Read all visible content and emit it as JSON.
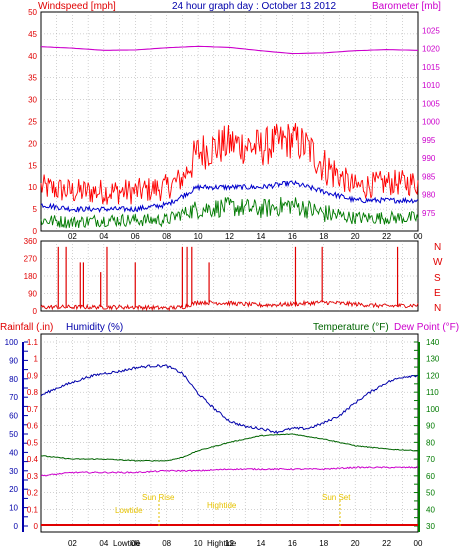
{
  "header": {
    "wind_label": "Windspeed [mph]",
    "title": "24 hour graph day : October 13 2012",
    "baro_label": "Barometer [mb]"
  },
  "mid_header": {
    "rain_label": "Rainfall (.in)",
    "humidity_label": "Humidity (%)",
    "temp_label": "Temperature (°F)",
    "dew_label": "Dew Point (°F)"
  },
  "colors": {
    "wind_gust": "#ff0000",
    "wind_avg": "#0000cc",
    "wind_low": "#007a00",
    "barometer": "#cc00cc",
    "direction": "#e00000",
    "humidity": "#0000aa",
    "temperature": "#006400",
    "dewpoint": "#cc00cc",
    "tide": "#e6c200",
    "frame": "#000000",
    "grid": "#8f8f8f"
  },
  "chart_data": [
    {
      "type": "line",
      "x_ticks": [
        "02",
        "04",
        "06",
        "08",
        "10",
        "12",
        "14",
        "16",
        "18",
        "20",
        "22",
        "00"
      ],
      "ylabel_left": "Windspeed [mph]",
      "ylabel_right": "Barometer [mb]",
      "ylim_left": [
        0,
        50
      ],
      "yticks_left": [
        "0",
        "5",
        "10",
        "15",
        "20",
        "25",
        "30",
        "35",
        "40",
        "45",
        "50"
      ],
      "ylim_right": [
        970,
        1030
      ],
      "yticks_right": [
        "975",
        "980",
        "985",
        "990",
        "995",
        "1000",
        "1005",
        "1010",
        "1015",
        "1020",
        "1025"
      ],
      "grid": true,
      "series": [
        {
          "name": "gust",
          "x": [
            0,
            2,
            4,
            6,
            8,
            9,
            10,
            12,
            14,
            16,
            17,
            18,
            20,
            22,
            24
          ],
          "y": [
            10,
            9,
            9,
            9,
            10,
            12,
            18,
            20,
            19,
            21,
            19,
            15,
            10,
            11,
            11
          ]
        },
        {
          "name": "avg",
          "x": [
            0,
            2,
            4,
            6,
            8,
            9,
            10,
            12,
            14,
            16,
            17,
            18,
            20,
            22,
            24
          ],
          "y": [
            6,
            5,
            5,
            5,
            6,
            8,
            10,
            10,
            10,
            11,
            10,
            9,
            7,
            7,
            7
          ]
        },
        {
          "name": "low",
          "x": [
            0,
            2,
            4,
            6,
            8,
            9,
            10,
            12,
            14,
            16,
            17,
            18,
            20,
            22,
            24
          ],
          "y": [
            2.5,
            2,
            2.5,
            2.5,
            2.5,
            4,
            5,
            5.5,
            5,
            6,
            5,
            4,
            3,
            3,
            3
          ]
        },
        {
          "name": "barometer",
          "x": [
            0,
            2,
            4,
            6,
            8,
            10,
            12,
            14,
            16,
            18,
            20,
            22,
            24
          ],
          "y": [
            1020.5,
            1020.1,
            1019.5,
            1019.6,
            1020.2,
            1020.6,
            1020.3,
            1019.4,
            1018.6,
            1018.8,
            1019.4,
            1019.7,
            1019.5
          ]
        }
      ]
    },
    {
      "type": "scatter",
      "x_ticks": [],
      "yticks_left": [
        "0",
        "90",
        "180",
        "270",
        "360"
      ],
      "ylim": [
        0,
        360
      ],
      "compass_labels": [
        "N",
        "W",
        "S",
        "E",
        "N"
      ],
      "grid": true,
      "series": [
        {
          "name": "direction_baseline",
          "x": [
            0,
            3,
            6,
            8,
            9,
            10,
            12,
            14,
            16,
            18,
            20,
            22,
            24
          ],
          "y": [
            20,
            20,
            20,
            15,
            20,
            45,
            40,
            30,
            35,
            45,
            35,
            25,
            30
          ]
        },
        {
          "name": "direction_spikes",
          "x": [
            1.1,
            1.6,
            2.5,
            2.7,
            3.8,
            4.2,
            6.0,
            9.0,
            9.3,
            9.6,
            10.7,
            16.2,
            17.9,
            22.7
          ],
          "y": [
            330,
            330,
            250,
            250,
            200,
            330,
            250,
            330,
            330,
            330,
            250,
            330,
            330,
            330
          ]
        }
      ]
    },
    {
      "type": "line",
      "x_ticks": [
        "02",
        "04",
        "06",
        "08",
        "10",
        "12",
        "14",
        "16",
        "18",
        "20",
        "22",
        "00"
      ],
      "ylabel_left_1": "Rainfall (.in)",
      "ylabel_left_2": "Humidity (%)",
      "ylabel_right": "Temperature (°F)",
      "rain_ticks": [
        "0",
        "0.1",
        "0.2",
        "0.3",
        "0.4",
        "0.5",
        "0.6",
        "0.7",
        "0.8",
        "0.9",
        "1",
        "1.1"
      ],
      "humidity_ticks": [
        "0",
        "10",
        "20",
        "30",
        "40",
        "50",
        "60",
        "70",
        "80",
        "90",
        "100"
      ],
      "temp_ticks": [
        "30",
        "40",
        "50",
        "60",
        "70",
        "80",
        "90",
        "100",
        "110",
        "120",
        "130",
        "140"
      ],
      "ylim_humidity": [
        0,
        100
      ],
      "ylim_temp": [
        30,
        140
      ],
      "grid": true,
      "tide_labels": [
        "Lowtide",
        "Sun Rise",
        "Hightide",
        "Sun Set",
        "Lowtide",
        "Hightide"
      ],
      "series": [
        {
          "name": "humidity",
          "x": [
            0,
            1,
            2,
            3,
            4,
            5,
            6,
            7,
            8,
            9,
            10,
            11,
            12,
            13,
            14,
            15,
            16,
            17,
            18,
            19,
            20,
            21,
            22,
            23,
            24
          ],
          "y": [
            71,
            75,
            78,
            81,
            83,
            84,
            86,
            87,
            87,
            83,
            72,
            64,
            57,
            54,
            53,
            51,
            53,
            53,
            56,
            60,
            67,
            73,
            78,
            81,
            82
          ]
        },
        {
          "name": "temperature",
          "x": [
            0,
            2,
            4,
            6,
            8,
            9,
            10,
            12,
            14,
            16,
            18,
            20,
            22,
            24
          ],
          "y": [
            72,
            70,
            70,
            69,
            69,
            71,
            75,
            80,
            84,
            85,
            82,
            78,
            76,
            75
          ]
        },
        {
          "name": "dewpoint",
          "x": [
            0,
            2,
            4,
            6,
            8,
            10,
            12,
            14,
            16,
            18,
            20,
            22,
            24
          ],
          "y": [
            60,
            62,
            62,
            62,
            63,
            63,
            64,
            64,
            64,
            64,
            65,
            65,
            65
          ]
        },
        {
          "name": "rainfall",
          "x": [
            0,
            24
          ],
          "y": [
            0,
            0
          ]
        }
      ]
    }
  ]
}
